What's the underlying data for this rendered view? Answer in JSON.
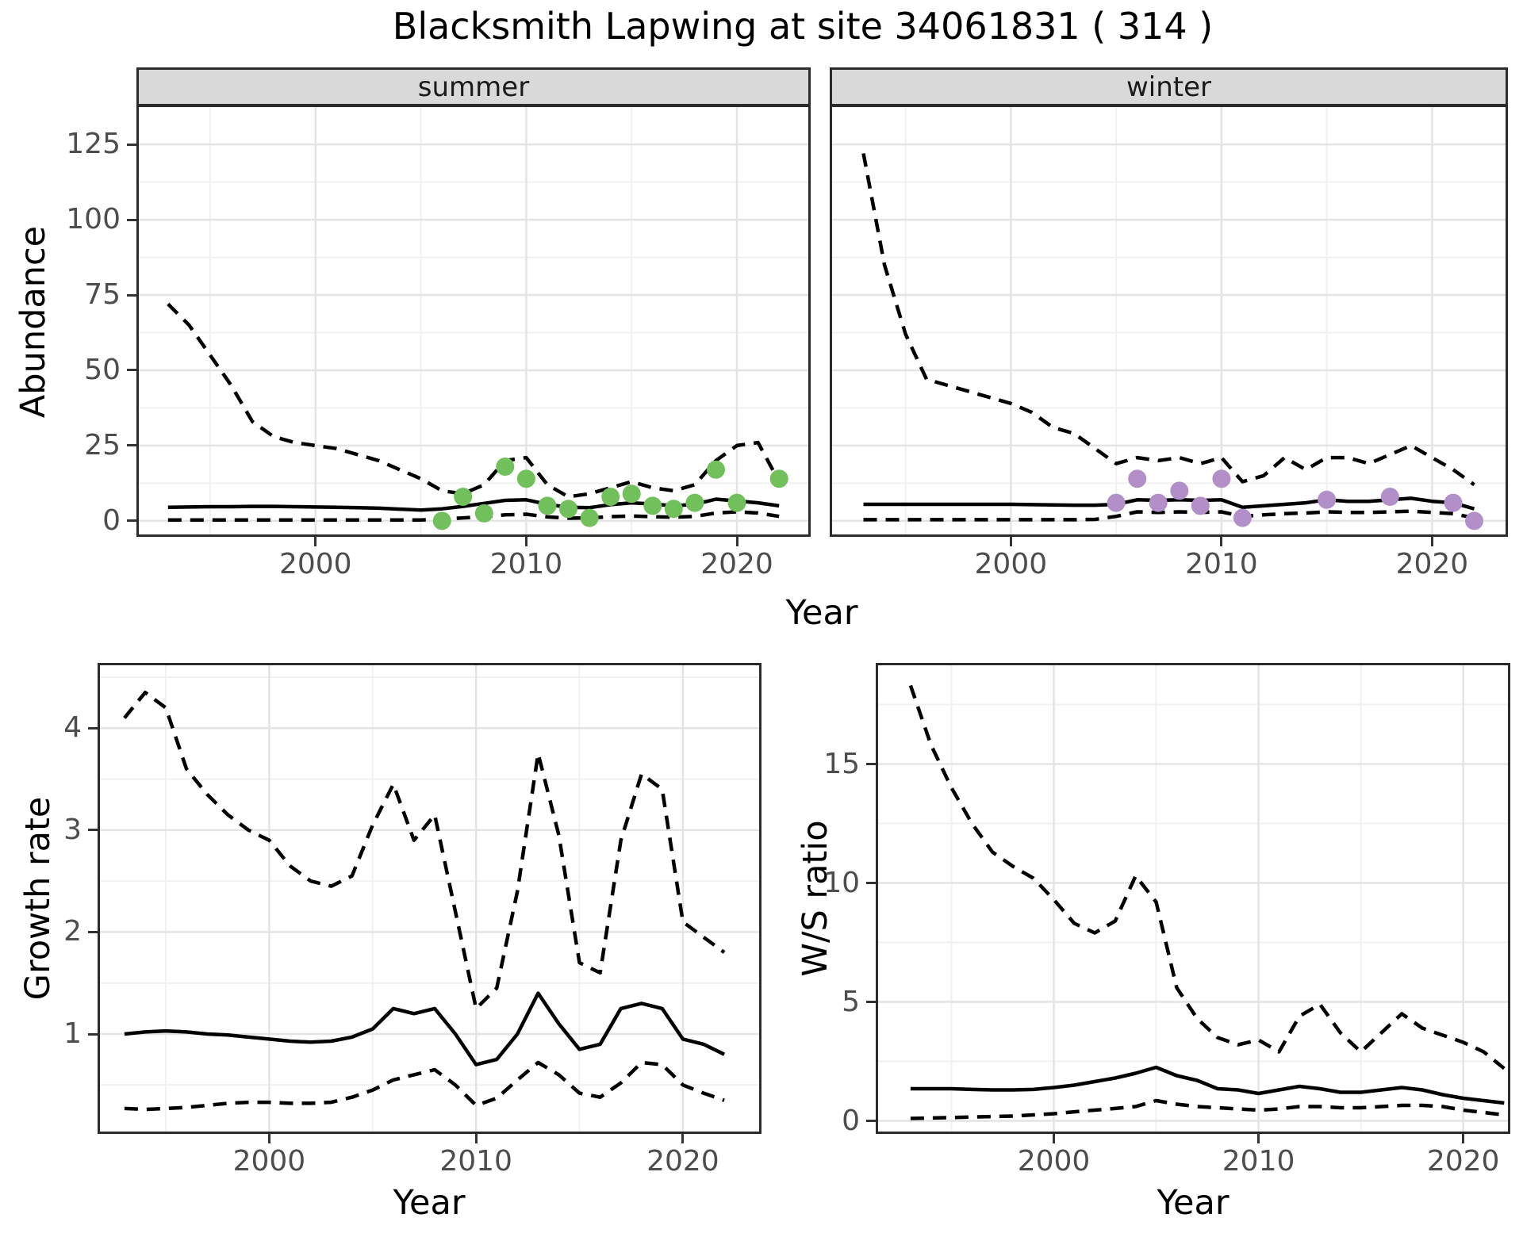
{
  "title": "Blacksmith Lapwing at site 34061831 ( 314 )",
  "facets": {
    "summer": "summer",
    "winter": "winter"
  },
  "axis_titles": {
    "abundance": "Abundance",
    "year_top": "Year",
    "growth": "Growth rate",
    "ws": "W/S ratio",
    "year_growth": "Year",
    "year_ws": "Year"
  },
  "colors": {
    "summer_point": "#72c05c",
    "winter_point": "#b28fc9",
    "line": "#000000",
    "grid_major": "#e4e4e4",
    "grid_minor": "#f1f1f1",
    "panel_border": "#2b2b2b",
    "strip_bg": "#d9d9d9",
    "tick_text": "#4d4d4d"
  },
  "chart_data": [
    {
      "id": "abundance_summer",
      "type": "line",
      "facet": "summer",
      "ylabel": "Abundance",
      "xlabel": "Year",
      "xlim": [
        1991.5,
        2023.5
      ],
      "ylim": [
        -5.3,
        138.2
      ],
      "xticks": [
        2000,
        2010,
        2020
      ],
      "xminor": [
        1995,
        2005,
        2015
      ],
      "yticks": [
        0,
        25,
        50,
        75,
        100,
        125
      ],
      "yminor": [
        12.5,
        37.5,
        62.5,
        87.5,
        112.5,
        137.5
      ],
      "grid": true,
      "x": [
        1993,
        1994,
        1995,
        1996,
        1997,
        1998,
        1999,
        2000,
        2001,
        2002,
        2003,
        2004,
        2005,
        2006,
        2007,
        2008,
        2009,
        2010,
        2011,
        2012,
        2013,
        2014,
        2015,
        2016,
        2017,
        2018,
        2019,
        2020,
        2021,
        2022
      ],
      "series": [
        {
          "name": "upper_ci",
          "style": "dashed",
          "values": [
            72,
            65,
            55,
            45,
            33,
            28,
            26,
            25,
            24,
            22,
            20,
            17,
            14,
            10,
            9,
            12,
            20,
            21,
            12,
            8,
            9,
            11,
            13,
            11,
            10,
            12,
            20,
            25,
            26,
            13
          ]
        },
        {
          "name": "median",
          "style": "solid",
          "values": [
            4.5,
            4.6,
            4.7,
            4.7,
            4.8,
            4.8,
            4.7,
            4.6,
            4.5,
            4.4,
            4.2,
            3.9,
            3.6,
            4.0,
            4.8,
            5.8,
            6.8,
            7.0,
            5.5,
            4.5,
            4.4,
            5.4,
            6.0,
            5.6,
            5.0,
            5.5,
            7.2,
            6.6,
            6.0,
            5.0
          ]
        },
        {
          "name": "lower_ci",
          "style": "dashed",
          "values": [
            0.3,
            0.3,
            0.3,
            0.3,
            0.3,
            0.3,
            0.3,
            0.3,
            0.3,
            0.3,
            0.3,
            0.3,
            0.3,
            0.5,
            1.0,
            1.4,
            2.0,
            2.2,
            1.3,
            0.9,
            1.0,
            1.4,
            1.6,
            1.4,
            1.2,
            1.5,
            2.6,
            3.0,
            2.6,
            1.5
          ]
        }
      ],
      "points": {
        "name": "observed_counts_summer",
        "color": "#72c05c",
        "xy": [
          [
            2006,
            0
          ],
          [
            2007,
            8
          ],
          [
            2008,
            2.5
          ],
          [
            2009,
            18
          ],
          [
            2010,
            14
          ],
          [
            2011,
            5
          ],
          [
            2012,
            4
          ],
          [
            2013,
            1
          ],
          [
            2014,
            8
          ],
          [
            2015,
            9
          ],
          [
            2016,
            5
          ],
          [
            2017,
            4
          ],
          [
            2018,
            6
          ],
          [
            2019,
            17
          ],
          [
            2020,
            6
          ],
          [
            2022,
            14
          ]
        ]
      }
    },
    {
      "id": "abundance_winter",
      "type": "line",
      "facet": "winter",
      "ylabel": "Abundance",
      "xlabel": "Year",
      "xlim": [
        1991.4,
        2023.6
      ],
      "ylim": [
        -5.3,
        138.2
      ],
      "xticks": [
        2000,
        2010,
        2020
      ],
      "xminor": [
        1995,
        2005,
        2015
      ],
      "yticks": [
        0,
        25,
        50,
        75,
        100,
        125
      ],
      "yminor": [
        12.5,
        37.5,
        62.5,
        87.5,
        112.5,
        137.5
      ],
      "grid": true,
      "x": [
        1993,
        1994,
        1995,
        1996,
        1997,
        1998,
        1999,
        2000,
        2001,
        2002,
        2003,
        2004,
        2005,
        2006,
        2007,
        2008,
        2009,
        2010,
        2011,
        2012,
        2013,
        2014,
        2015,
        2016,
        2017,
        2018,
        2019,
        2020,
        2021,
        2022
      ],
      "series": [
        {
          "name": "upper_ci",
          "style": "dashed",
          "values": [
            122,
            85,
            62,
            47,
            45,
            43,
            41,
            39,
            36,
            31,
            29,
            24,
            19,
            21,
            20,
            21,
            19,
            21,
            13,
            15,
            21,
            17,
            21,
            21,
            19,
            22,
            25,
            21,
            17,
            12
          ]
        },
        {
          "name": "median",
          "style": "solid",
          "values": [
            5.5,
            5.5,
            5.5,
            5.5,
            5.5,
            5.5,
            5.5,
            5.5,
            5.4,
            5.3,
            5.2,
            5.2,
            5.5,
            7.0,
            6.8,
            7.0,
            6.8,
            7.0,
            4.5,
            5.0,
            5.5,
            6.0,
            7.0,
            6.5,
            6.5,
            7.0,
            7.5,
            6.5,
            6.0,
            4.0
          ]
        },
        {
          "name": "lower_ci",
          "style": "dashed",
          "values": [
            0.4,
            0.4,
            0.4,
            0.4,
            0.4,
            0.4,
            0.4,
            0.4,
            0.4,
            0.4,
            0.4,
            0.5,
            1.5,
            3.0,
            2.8,
            3.0,
            2.8,
            3.0,
            1.5,
            2.0,
            2.4,
            2.6,
            3.0,
            2.8,
            2.8,
            3.0,
            3.2,
            2.8,
            2.4,
            1.0
          ]
        }
      ],
      "points": {
        "name": "observed_counts_winter",
        "color": "#b28fc9",
        "xy": [
          [
            2005,
            6
          ],
          [
            2006,
            14
          ],
          [
            2007,
            6
          ],
          [
            2008,
            10
          ],
          [
            2009,
            5
          ],
          [
            2010,
            14
          ],
          [
            2011,
            1
          ],
          [
            2015,
            7
          ],
          [
            2018,
            8
          ],
          [
            2021,
            6
          ],
          [
            2022,
            0
          ]
        ]
      }
    },
    {
      "id": "growth_rate",
      "type": "line",
      "ylabel": "Growth rate",
      "xlabel": "Year",
      "xlim": [
        1991.7,
        2023.8
      ],
      "ylim": [
        0.02,
        4.64
      ],
      "xticks": [
        2000,
        2010,
        2020
      ],
      "xminor": [
        1995,
        2005,
        2015
      ],
      "yticks": [
        1,
        2,
        3,
        4
      ],
      "yminor": [
        0.5,
        1.5,
        2.5,
        3.5,
        4.5
      ],
      "grid": true,
      "x": [
        1993,
        1994,
        1995,
        1996,
        1997,
        1998,
        1999,
        2000,
        2001,
        2002,
        2003,
        2004,
        2005,
        2006,
        2007,
        2008,
        2009,
        2010,
        2011,
        2012,
        2013,
        2014,
        2015,
        2016,
        2017,
        2018,
        2019,
        2020,
        2021,
        2022
      ],
      "series": [
        {
          "name": "upper_ci",
          "style": "dashed",
          "values": [
            4.1,
            4.35,
            4.2,
            3.6,
            3.35,
            3.15,
            3.0,
            2.9,
            2.65,
            2.5,
            2.45,
            2.55,
            3.05,
            3.45,
            2.9,
            3.15,
            2.2,
            1.25,
            1.45,
            2.4,
            3.75,
            2.95,
            1.7,
            1.6,
            2.9,
            3.55,
            3.4,
            2.1,
            1.95,
            1.8
          ]
        },
        {
          "name": "median",
          "style": "solid",
          "values": [
            1.0,
            1.02,
            1.03,
            1.02,
            1.0,
            0.99,
            0.97,
            0.95,
            0.93,
            0.92,
            0.93,
            0.97,
            1.05,
            1.25,
            1.2,
            1.25,
            1.0,
            0.7,
            0.75,
            1.0,
            1.4,
            1.1,
            0.85,
            0.9,
            1.25,
            1.3,
            1.25,
            0.95,
            0.9,
            0.8
          ]
        },
        {
          "name": "lower_ci",
          "style": "dashed",
          "values": [
            0.27,
            0.26,
            0.27,
            0.28,
            0.3,
            0.32,
            0.33,
            0.33,
            0.32,
            0.32,
            0.33,
            0.38,
            0.45,
            0.55,
            0.6,
            0.65,
            0.5,
            0.3,
            0.37,
            0.55,
            0.72,
            0.6,
            0.42,
            0.38,
            0.52,
            0.72,
            0.7,
            0.5,
            0.42,
            0.35
          ]
        }
      ]
    },
    {
      "id": "ws_ratio",
      "type": "line",
      "ylabel": "W/S ratio",
      "xlabel": "Year",
      "xlim": [
        1991.3,
        2022.3
      ],
      "ylim": [
        -0.55,
        19.25
      ],
      "xticks": [
        2000,
        2010,
        2020
      ],
      "xminor": [
        1995,
        2005,
        2015
      ],
      "yticks": [
        0,
        5,
        10,
        15
      ],
      "yminor": [
        2.5,
        7.5,
        12.5,
        17.5
      ],
      "grid": true,
      "x": [
        1993,
        1994,
        1995,
        1996,
        1997,
        1998,
        1999,
        2000,
        2001,
        2002,
        2003,
        2004,
        2005,
        2006,
        2007,
        2008,
        2009,
        2010,
        2011,
        2012,
        2013,
        2014,
        2015,
        2016,
        2017,
        2018,
        2019,
        2020,
        2021,
        2022
      ],
      "series": [
        {
          "name": "upper_ci",
          "style": "dashed",
          "values": [
            18.3,
            15.8,
            14.0,
            12.5,
            11.3,
            10.7,
            10.2,
            9.3,
            8.3,
            7.9,
            8.4,
            10.3,
            9.2,
            5.6,
            4.3,
            3.5,
            3.2,
            3.4,
            2.9,
            4.4,
            4.9,
            3.7,
            2.9,
            3.7,
            4.5,
            3.9,
            3.6,
            3.3,
            2.9,
            2.2
          ]
        },
        {
          "name": "median",
          "style": "solid",
          "values": [
            1.35,
            1.35,
            1.35,
            1.32,
            1.3,
            1.3,
            1.32,
            1.4,
            1.5,
            1.65,
            1.8,
            2.0,
            2.25,
            1.9,
            1.7,
            1.35,
            1.3,
            1.15,
            1.3,
            1.45,
            1.35,
            1.2,
            1.2,
            1.3,
            1.4,
            1.3,
            1.1,
            0.95,
            0.85,
            0.75
          ]
        },
        {
          "name": "lower_ci",
          "style": "dashed",
          "values": [
            0.1,
            0.12,
            0.14,
            0.16,
            0.18,
            0.2,
            0.25,
            0.3,
            0.38,
            0.45,
            0.52,
            0.6,
            0.85,
            0.7,
            0.6,
            0.55,
            0.5,
            0.45,
            0.5,
            0.6,
            0.6,
            0.55,
            0.55,
            0.6,
            0.65,
            0.65,
            0.6,
            0.45,
            0.35,
            0.25
          ]
        }
      ]
    }
  ]
}
